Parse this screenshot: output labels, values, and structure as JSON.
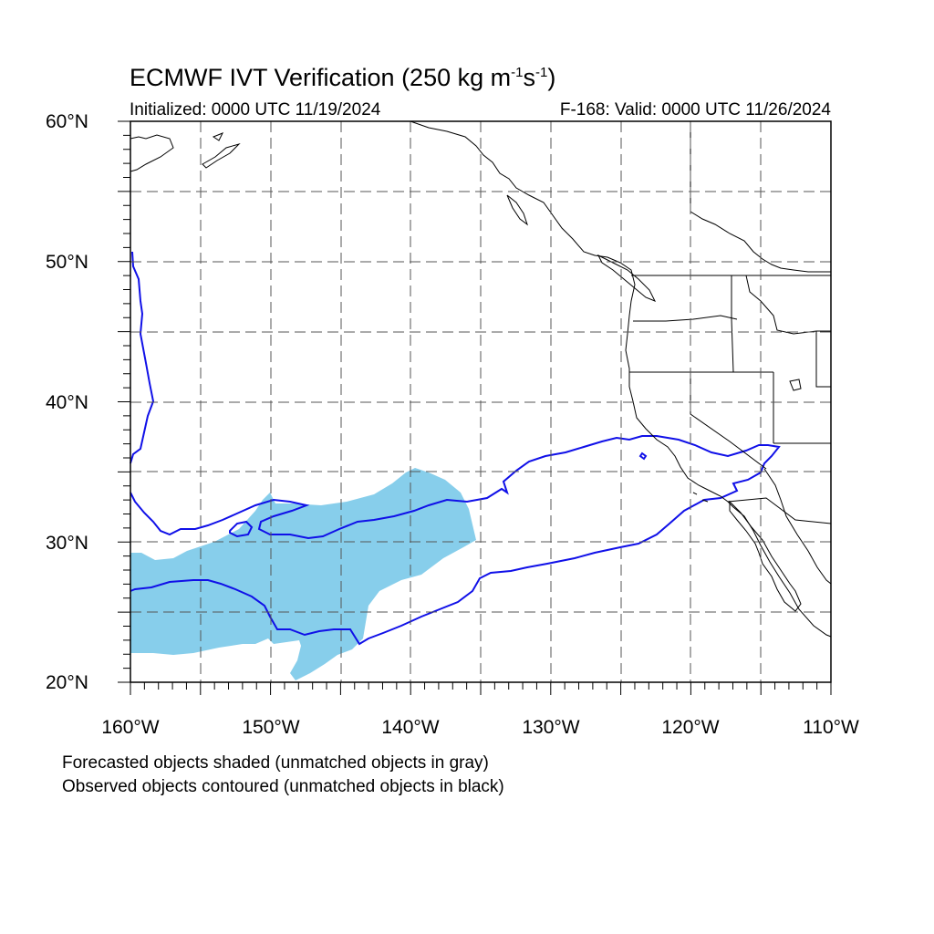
{
  "header": {
    "title_main": "ECMWF IVT Verification (250 kg m",
    "title_sup1": "-1",
    "title_mid": "s",
    "title_sup2": "-1",
    "title_end": ")",
    "initialized": "Initialized: 0000 UTC 11/19/2024",
    "valid": "F-168: Valid: 0000 UTC 11/26/2024"
  },
  "axes": {
    "lat_labels": [
      "60°N",
      "50°N",
      "40°N",
      "30°N",
      "20°N"
    ],
    "lon_labels": [
      "160°W",
      "150°W",
      "140°W",
      "130°W",
      "120°W",
      "110°W"
    ],
    "lat_range": [
      20,
      60
    ],
    "lon_range": [
      -160,
      -110
    ],
    "grid": "dashed every 5°"
  },
  "legend": {
    "line1": "Forecasted objects shaded (unmatched objects in gray)",
    "line2": "Observed objects contoured (unmatched objects in black)"
  },
  "colors": {
    "forecast_fill": "#87CEEB",
    "observed_contour": "#1010E8",
    "coastline": "#000000",
    "grid": "#555555"
  }
}
